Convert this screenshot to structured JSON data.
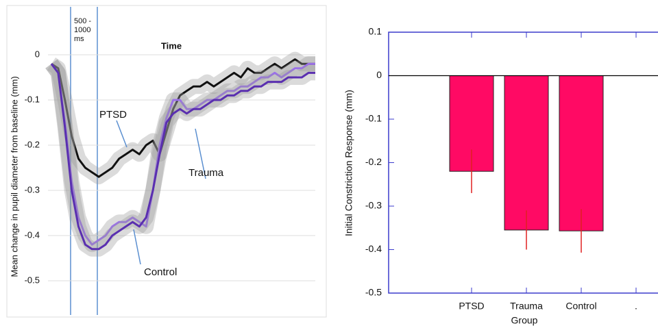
{
  "chart_data": [
    {
      "type": "line",
      "xlabel": "Time",
      "ylabel": "Mean change in pupil diameter from baseline (mm)",
      "annotation": "500 - 1000 ms",
      "ylim": [
        -0.5,
        0
      ],
      "yticks": [
        0,
        -0.1,
        -0.2,
        -0.3,
        -0.4,
        -0.5
      ],
      "grid": true,
      "series": [
        {
          "name": "PTSD",
          "color": "#111111",
          "values": [
            -0.02,
            -0.03,
            -0.1,
            -0.18,
            -0.23,
            -0.25,
            -0.26,
            -0.27,
            -0.26,
            -0.25,
            -0.23,
            -0.22,
            -0.21,
            -0.22,
            -0.2,
            -0.19,
            -0.22,
            -0.17,
            -0.12,
            -0.09,
            -0.08,
            -0.07,
            -0.07,
            -0.06,
            -0.07,
            -0.06,
            -0.05,
            -0.04,
            -0.05,
            -0.03,
            -0.04,
            -0.04,
            -0.03,
            -0.02,
            -0.03,
            -0.02,
            -0.01,
            -0.02,
            -0.02,
            -0.02
          ]
        },
        {
          "name": "Trauma",
          "color": "#9a70e8",
          "values": [
            -0.02,
            -0.04,
            -0.15,
            -0.28,
            -0.36,
            -0.4,
            -0.42,
            -0.41,
            -0.4,
            -0.38,
            -0.37,
            -0.37,
            -0.36,
            -0.37,
            -0.38,
            -0.3,
            -0.2,
            -0.14,
            -0.1,
            -0.1,
            -0.12,
            -0.12,
            -0.11,
            -0.1,
            -0.1,
            -0.09,
            -0.08,
            -0.08,
            -0.07,
            -0.07,
            -0.06,
            -0.05,
            -0.05,
            -0.04,
            -0.05,
            -0.04,
            -0.03,
            -0.03,
            -0.02,
            -0.02
          ]
        },
        {
          "name": "Control",
          "color": "#5a2fb0",
          "values": [
            -0.02,
            -0.04,
            -0.16,
            -0.3,
            -0.38,
            -0.42,
            -0.43,
            -0.43,
            -0.42,
            -0.4,
            -0.39,
            -0.38,
            -0.37,
            -0.38,
            -0.36,
            -0.3,
            -0.22,
            -0.15,
            -0.13,
            -0.12,
            -0.13,
            -0.12,
            -0.12,
            -0.11,
            -0.1,
            -0.1,
            -0.09,
            -0.09,
            -0.08,
            -0.08,
            -0.07,
            -0.07,
            -0.06,
            -0.06,
            -0.06,
            -0.05,
            -0.05,
            -0.05,
            -0.04,
            -0.04
          ]
        }
      ]
    },
    {
      "type": "bar",
      "xlabel": "Group",
      "ylabel": "Initial Constriction Response (mm)",
      "categories": [
        "PTSD",
        "Trauma",
        "Control",
        "."
      ],
      "values": [
        -0.22,
        -0.355,
        -0.357,
        null
      ],
      "errors": [
        0.05,
        0.045,
        0.05,
        null
      ],
      "color": "#ff0a64",
      "error_color": "#e02020",
      "ylim": [
        -0.5,
        0.1
      ],
      "yticks": [
        0.1,
        0,
        -0.1,
        -0.2,
        -0.3,
        -0.4,
        -0.5
      ]
    }
  ]
}
